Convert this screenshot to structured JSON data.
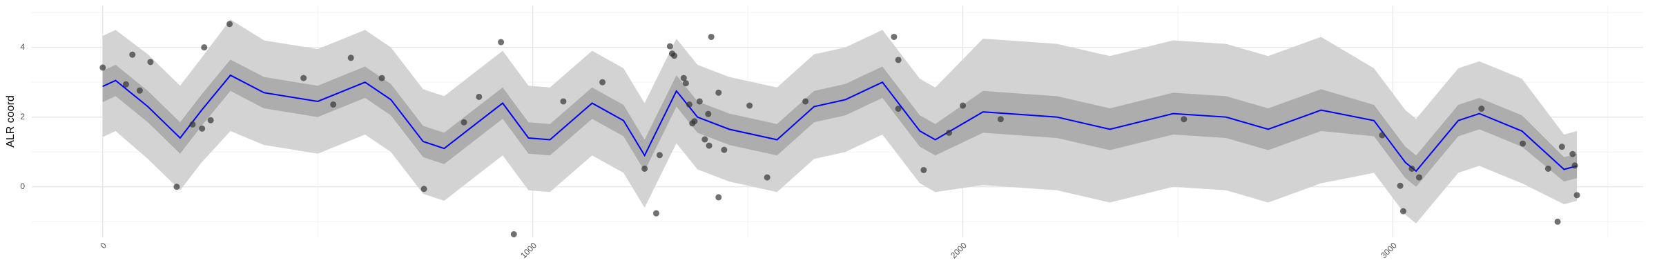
{
  "chart_data": {
    "type": "scatter",
    "y_label": "ALR coord",
    "xlim": [
      -165,
      3582
    ],
    "ylim": [
      -1.45,
      5.2
    ],
    "xticks": [
      0,
      1000,
      2000,
      3000
    ],
    "yticks": [
      0,
      2,
      4
    ],
    "x_minor_ticks": [
      500,
      1500,
      2500,
      3500
    ],
    "y_minor_ticks": [
      -1,
      1,
      3,
      5
    ],
    "grid": true,
    "point_color": "#333333",
    "x": [
      0,
      54,
      69,
      86,
      111,
      172,
      209,
      231,
      236,
      251,
      295,
      467,
      536,
      577,
      649,
      747,
      840,
      875,
      926,
      956,
      1071,
      1162,
      1260,
      1287,
      1295,
      1319,
      1324,
      1329,
      1351,
      1356,
      1364,
      1371,
      1376,
      1388,
      1400,
      1408,
      1410,
      1415,
      1432,
      1432,
      1445,
      1504,
      1545,
      1634,
      1840,
      1850,
      1850,
      1909,
      1968,
      2000,
      2088,
      2514,
      2975,
      3017,
      3024,
      3044,
      3061,
      3206,
      3302,
      3361,
      3383,
      3393,
      3418,
      3423,
      3428
    ],
    "y": [
      3.42,
      2.94,
      3.79,
      2.76,
      3.58,
      0.0,
      1.79,
      1.67,
      4.0,
      1.91,
      4.67,
      3.12,
      2.36,
      3.7,
      3.12,
      -0.06,
      1.85,
      2.58,
      4.15,
      -1.36,
      2.45,
      3.0,
      0.52,
      -0.76,
      0.91,
      4.03,
      3.82,
      3.76,
      3.12,
      2.97,
      2.36,
      1.82,
      1.88,
      2.45,
      1.36,
      2.09,
      1.18,
      4.3,
      -0.3,
      2.7,
      1.06,
      2.33,
      0.27,
      2.45,
      4.3,
      3.64,
      2.24,
      0.48,
      1.55,
      2.33,
      1.94,
      1.94,
      1.48,
      0.03,
      -0.7,
      0.52,
      0.27,
      2.24,
      1.24,
      0.52,
      -1.0,
      1.15,
      0.94,
      0.61,
      -0.24
    ],
    "fit": {
      "color": "#0000ff",
      "inner_color": "#adadad",
      "outer_color": "#d3d3d3",
      "x": [
        0,
        30,
        105,
        180,
        230,
        297,
        375,
        500,
        610,
        670,
        745,
        794,
        867,
        930,
        990,
        1040,
        1138,
        1211,
        1260,
        1334,
        1383,
        1457,
        1568,
        1654,
        1727,
        1813,
        1900,
        1936,
        2047,
        2219,
        2342,
        2489,
        2612,
        2710,
        2833,
        2956,
        3029,
        3054,
        3152,
        3201,
        3300,
        3398,
        3428
      ],
      "values": [
        2.88,
        3.05,
        2.3,
        1.4,
        2.2,
        3.2,
        2.7,
        2.45,
        3.0,
        2.5,
        1.3,
        1.1,
        1.8,
        2.4,
        1.4,
        1.35,
        2.4,
        1.9,
        0.9,
        2.75,
        2.0,
        1.65,
        1.35,
        2.3,
        2.5,
        3.0,
        1.6,
        1.35,
        2.15,
        2.0,
        1.65,
        2.1,
        2.0,
        1.65,
        2.2,
        1.9,
        0.7,
        0.45,
        1.9,
        2.1,
        1.6,
        0.5,
        0.6
      ],
      "inner_lower": [
        2.43,
        2.6,
        1.85,
        0.95,
        1.75,
        2.75,
        2.25,
        2.0,
        2.55,
        2.05,
        0.85,
        0.65,
        1.35,
        1.95,
        0.95,
        0.9,
        1.95,
        1.45,
        0.45,
        2.3,
        1.55,
        1.2,
        0.9,
        1.85,
        2.05,
        2.55,
        1.15,
        0.9,
        1.55,
        1.4,
        1.05,
        1.5,
        1.4,
        1.05,
        1.6,
        1.45,
        0.25,
        0.0,
        1.45,
        1.65,
        1.15,
        0.15,
        0.25
      ],
      "inner_upper": [
        3.33,
        3.5,
        2.75,
        1.85,
        2.65,
        3.65,
        3.15,
        2.9,
        3.45,
        2.95,
        1.75,
        1.55,
        2.25,
        2.85,
        1.85,
        1.8,
        2.85,
        2.35,
        1.35,
        3.2,
        2.45,
        2.1,
        1.8,
        2.75,
        2.95,
        3.45,
        2.05,
        1.8,
        2.75,
        2.6,
        2.25,
        2.7,
        2.6,
        2.25,
        2.8,
        2.35,
        1.15,
        0.9,
        2.35,
        2.55,
        2.05,
        0.85,
        0.95
      ],
      "outer_lower": [
        1.43,
        1.6,
        0.8,
        -0.1,
        0.7,
        1.6,
        1.2,
        0.95,
        1.5,
        1.0,
        -0.2,
        -0.4,
        0.3,
        0.9,
        -0.1,
        -0.15,
        0.9,
        0.4,
        -0.6,
        1.25,
        0.5,
        0.15,
        -0.15,
        0.8,
        1.0,
        1.5,
        0.1,
        -0.15,
        0.05,
        -0.1,
        -0.45,
        0.0,
        -0.1,
        -0.45,
        0.1,
        0.4,
        -0.8,
        -1.05,
        0.4,
        0.6,
        0.1,
        -0.5,
        -0.4
      ],
      "outer_upper": [
        4.33,
        4.5,
        3.8,
        2.9,
        3.7,
        4.8,
        4.2,
        3.95,
        4.5,
        4.0,
        2.8,
        2.6,
        3.3,
        3.9,
        2.9,
        2.85,
        3.9,
        3.4,
        2.4,
        4.25,
        3.5,
        3.15,
        2.85,
        3.8,
        4.0,
        4.5,
        3.1,
        2.85,
        4.25,
        4.1,
        3.75,
        4.2,
        4.1,
        3.75,
        4.3,
        3.4,
        2.2,
        1.95,
        3.4,
        3.6,
        3.1,
        1.5,
        1.6
      ]
    }
  }
}
